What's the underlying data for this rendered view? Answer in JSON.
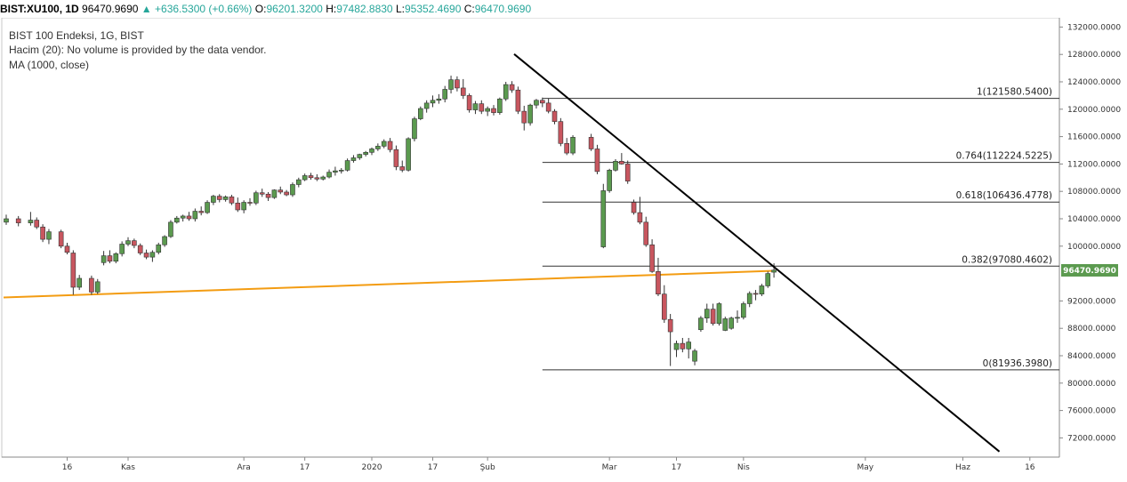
{
  "header": {
    "symbol": "BIST:XU100, 1D",
    "last": "96470.9690",
    "change": "▲ +636.5300 (+0.66%)",
    "o_label": "O:",
    "o_value": "96201.3200",
    "h_label": "H:",
    "h_value": "97482.8830",
    "l_label": "L:",
    "l_value": "95352.4690",
    "c_label": "C:",
    "c_value": "96470.9690"
  },
  "legend": {
    "line1": "BIST 100 Endeksi, 1G, BIST",
    "line2": "Hacim (20): No volume is provided by the data vendor.",
    "line3": "MA (1000, close)"
  },
  "colors": {
    "up": "#5b9a4f",
    "down": "#c8565f",
    "ma": "#f39c12",
    "trend": "#000000",
    "fib": "#333333",
    "pricetag_bg": "#5b9a4f"
  },
  "chart_data": {
    "type": "candlestick",
    "ylim": [
      70000,
      134000
    ],
    "y_ticks": [
      {
        "value": 132000,
        "label": "132000.0000"
      },
      {
        "value": 128000,
        "label": "128000.0000"
      },
      {
        "value": 124000,
        "label": "124000.0000"
      },
      {
        "value": 120000,
        "label": "120000.0000"
      },
      {
        "value": 116000,
        "label": "116000.0000"
      },
      {
        "value": 112000,
        "label": "112000.0000"
      },
      {
        "value": 108000,
        "label": "108000.0000"
      },
      {
        "value": 104000,
        "label": "104000.0000"
      },
      {
        "value": 100000,
        "label": "100000.0000"
      },
      {
        "value": 92000,
        "label": "92000.0000"
      },
      {
        "value": 88000,
        "label": "88000.0000"
      },
      {
        "value": 84000,
        "label": "84000.0000"
      },
      {
        "value": 80000,
        "label": "80000.0000"
      },
      {
        "value": 76000,
        "label": "76000.0000"
      },
      {
        "value": 72000,
        "label": "72000.0000"
      }
    ],
    "x_ticks": [
      {
        "index": 10,
        "label": "16"
      },
      {
        "index": 20,
        "label": "Kas"
      },
      {
        "index": 39,
        "label": "Ara"
      },
      {
        "index": 49,
        "label": "17"
      },
      {
        "index": 60,
        "label": "2020"
      },
      {
        "index": 70,
        "label": "17"
      },
      {
        "index": 79,
        "label": "Şub"
      },
      {
        "index": 99,
        "label": "Mar"
      },
      {
        "index": 110,
        "label": "17"
      },
      {
        "index": 121,
        "label": "Nis"
      },
      {
        "index": 141,
        "label": "May"
      },
      {
        "index": 157,
        "label": "Haz"
      },
      {
        "index": 168,
        "label": "16"
      }
    ],
    "candles": [
      [
        103500,
        104600,
        103100,
        104000
      ],
      [
        104000,
        104400,
        102900,
        103400
      ],
      [
        103400,
        105000,
        103000,
        103800
      ],
      [
        103800,
        104200,
        102500,
        102800
      ],
      [
        102800,
        103200,
        100600,
        101000
      ],
      [
        101000,
        102500,
        100300,
        102100
      ],
      [
        102100,
        102400,
        99700,
        100000
      ],
      [
        100000,
        100500,
        98800,
        99100
      ],
      [
        99000,
        99400,
        92900,
        94000
      ],
      [
        94000,
        95800,
        93600,
        95300
      ],
      [
        95300,
        95700,
        92900,
        93300
      ],
      [
        93300,
        95200,
        93000,
        94800
      ],
      [
        97600,
        99300,
        97200,
        98600
      ],
      [
        98600,
        99400,
        97500,
        97800
      ],
      [
        97800,
        99100,
        97500,
        98900
      ],
      [
        98900,
        100700,
        98500,
        100300
      ],
      [
        100300,
        101300,
        100000,
        100800
      ],
      [
        100800,
        101100,
        99700,
        100100
      ],
      [
        100100,
        100400,
        98700,
        99000
      ],
      [
        99000,
        99500,
        98100,
        98400
      ],
      [
        98400,
        99400,
        97700,
        99100
      ],
      [
        99100,
        100500,
        98800,
        100200
      ],
      [
        100200,
        101600,
        99900,
        101400
      ],
      [
        101400,
        103800,
        101200,
        103500
      ],
      [
        103500,
        104400,
        103300,
        104100
      ],
      [
        104100,
        104600,
        103600,
        104400
      ],
      [
        104400,
        105000,
        103700,
        104000
      ],
      [
        104000,
        105500,
        103600,
        105100
      ],
      [
        105100,
        105800,
        104500,
        104900
      ],
      [
        104900,
        106700,
        104700,
        106400
      ],
      [
        106400,
        107500,
        106000,
        107300
      ],
      [
        107300,
        107600,
        106400,
        106800
      ],
      [
        106800,
        107400,
        106500,
        107200
      ],
      [
        107200,
        107500,
        106000,
        106300
      ],
      [
        106300,
        107100,
        105000,
        105300
      ],
      [
        105300,
        106700,
        104800,
        106400
      ],
      [
        106400,
        107000,
        105900,
        106300
      ],
      [
        106300,
        108100,
        106000,
        107800
      ],
      [
        107800,
        108400,
        107200,
        107600
      ],
      [
        107600,
        107900,
        106600,
        107100
      ],
      [
        107100,
        108300,
        106900,
        108200
      ],
      [
        108200,
        108700,
        107600,
        107900
      ],
      [
        107900,
        108200,
        107300,
        107500
      ],
      [
        107500,
        109300,
        107200,
        109000
      ],
      [
        109000,
        110000,
        108600,
        109700
      ],
      [
        109700,
        110600,
        109500,
        110300
      ],
      [
        110300,
        110700,
        109700,
        110000
      ],
      [
        110000,
        110500,
        109500,
        109800
      ],
      [
        109800,
        110300,
        109600,
        110100
      ],
      [
        110100,
        111200,
        109900,
        110800
      ],
      [
        110800,
        111600,
        110300,
        111000
      ],
      [
        111000,
        111400,
        110600,
        111100
      ],
      [
        111100,
        112800,
        110900,
        112500
      ],
      [
        112500,
        113300,
        112200,
        112900
      ],
      [
        112900,
        113500,
        112600,
        113400
      ],
      [
        113400,
        113900,
        113100,
        113700
      ],
      [
        113700,
        114400,
        113300,
        114200
      ],
      [
        114200,
        115000,
        113900,
        114600
      ],
      [
        114600,
        115600,
        114300,
        115300
      ],
      [
        115300,
        115800,
        113700,
        114100
      ],
      [
        114100,
        114700,
        111100,
        111600
      ],
      [
        111600,
        112500,
        110800,
        111100
      ],
      [
        111100,
        115900,
        110900,
        115700
      ],
      [
        115700,
        118900,
        115300,
        118600
      ],
      [
        118600,
        120400,
        118400,
        120100
      ],
      [
        120100,
        121300,
        119500,
        120900
      ],
      [
        120900,
        122000,
        120300,
        121300
      ],
      [
        121300,
        122200,
        120800,
        121500
      ],
      [
        121500,
        123400,
        121000,
        122900
      ],
      [
        122900,
        124900,
        122300,
        124300
      ],
      [
        124300,
        124800,
        122600,
        123100
      ],
      [
        123100,
        124400,
        121500,
        122000
      ],
      [
        122000,
        122300,
        119500,
        119900
      ],
      [
        119900,
        121200,
        119300,
        120800
      ],
      [
        120800,
        121300,
        119300,
        119700
      ],
      [
        119700,
        120400,
        119000,
        120100
      ],
      [
        120100,
        120600,
        119100,
        119500
      ],
      [
        119500,
        121700,
        119200,
        121500
      ],
      [
        121500,
        124000,
        121200,
        123600
      ],
      [
        123600,
        124100,
        122400,
        122800
      ],
      [
        122800,
        123300,
        119300,
        119700
      ],
      [
        119700,
        120500,
        116900,
        118000
      ],
      [
        118000,
        120800,
        117600,
        120600
      ],
      [
        120600,
        121500,
        120100,
        121300
      ],
      [
        121300,
        121700,
        120300,
        120900
      ],
      [
        120900,
        121600,
        119400,
        119700
      ],
      [
        119700,
        120000,
        117800,
        118200
      ],
      [
        118200,
        118700,
        114600,
        115000
      ],
      [
        115000,
        115800,
        113300,
        113600
      ],
      [
        113600,
        116200,
        113300,
        115900
      ],
      [
        115900,
        116400,
        113900,
        114200
      ],
      [
        114200,
        114800,
        110500,
        110900
      ],
      [
        99900,
        109100,
        99700,
        108100
      ],
      [
        108100,
        111300,
        107800,
        111100
      ],
      [
        111100,
        112700,
        110900,
        112400
      ],
      [
        112400,
        113600,
        111900,
        112000
      ],
      [
        112000,
        112500,
        109100,
        109500
      ],
      [
        106400,
        106800,
        104600,
        104900
      ],
      [
        104900,
        107200,
        103200,
        103500
      ],
      [
        103500,
        104300,
        99900,
        100200
      ],
      [
        100200,
        101000,
        96100,
        96300
      ],
      [
        96300,
        98300,
        92700,
        93000
      ],
      [
        93000,
        94300,
        88800,
        89300
      ],
      [
        89300,
        90100,
        82500,
        87500
      ],
      [
        84900,
        86200,
        83800,
        85800
      ],
      [
        85800,
        86600,
        84500,
        85000
      ],
      [
        85000,
        86600,
        83600,
        86000
      ],
      [
        83200,
        85000,
        82600,
        84700
      ],
      [
        87800,
        89800,
        87500,
        89500
      ],
      [
        89500,
        91600,
        88800,
        90800
      ],
      [
        90800,
        91600,
        88400,
        88700
      ],
      [
        88700,
        91800,
        88400,
        91600
      ],
      [
        87700,
        89700,
        87600,
        89400
      ],
      [
        88000,
        89700,
        87800,
        89500
      ],
      [
        89500,
        90600,
        88800,
        89600
      ],
      [
        89600,
        91900,
        89300,
        91600
      ],
      [
        91600,
        93400,
        91100,
        93100
      ],
      [
        93100,
        93600,
        92100,
        93000
      ],
      [
        93000,
        94500,
        92700,
        94200
      ],
      [
        94200,
        96300,
        93900,
        96000
      ],
      [
        96200,
        97500,
        95400,
        96500
      ]
    ],
    "candle_index": [
      0,
      2,
      4,
      5,
      6,
      7,
      9,
      10,
      11,
      12,
      14,
      15,
      16,
      17,
      18,
      19,
      20,
      21,
      22,
      23,
      24,
      25,
      26,
      27,
      28,
      29,
      30,
      31,
      32,
      33,
      34,
      35,
      36,
      37,
      38,
      39,
      40,
      41,
      42,
      43,
      44,
      45,
      46,
      47,
      48,
      49,
      50,
      51,
      52,
      53,
      54,
      55,
      56,
      57,
      58,
      59,
      60,
      61,
      62,
      63,
      64,
      65,
      66,
      67,
      68,
      69,
      70,
      71,
      72,
      73,
      74,
      75,
      76,
      77,
      78,
      79,
      80,
      81,
      82,
      83,
      84,
      85,
      86,
      87,
      88,
      89,
      90,
      91,
      92,
      93,
      96,
      97,
      98,
      99,
      100,
      101,
      102,
      103,
      104,
      105,
      106,
      107,
      108,
      109,
      110,
      111,
      112,
      113,
      114,
      115,
      116,
      117,
      118,
      119,
      120,
      121,
      122,
      123,
      124,
      125,
      126
    ],
    "ma": {
      "name": "MA (1000, close)",
      "start": [
        0,
        92500
      ],
      "end": [
        126,
        96400
      ]
    },
    "trendline": {
      "start": [
        80,
        127400
      ],
      "end": [
        163,
        70000
      ]
    },
    "fib_levels": [
      {
        "ratio": "1",
        "value": 121580.54,
        "label": "1(121580.5400)"
      },
      {
        "ratio": "0.764",
        "value": 112224.5225,
        "label": "0.764(112224.5225)"
      },
      {
        "ratio": "0.618",
        "value": 106436.4778,
        "label": "0.618(106436.4778)"
      },
      {
        "ratio": "0.382",
        "value": 97080.4602,
        "label": "0.382(97080.4602)"
      },
      {
        "ratio": "0",
        "value": 81936.398,
        "label": "0(81936.3980)"
      }
    ],
    "fib_start_index": 88,
    "last_price": {
      "value": 96470.969,
      "label": "96470.9690"
    }
  }
}
